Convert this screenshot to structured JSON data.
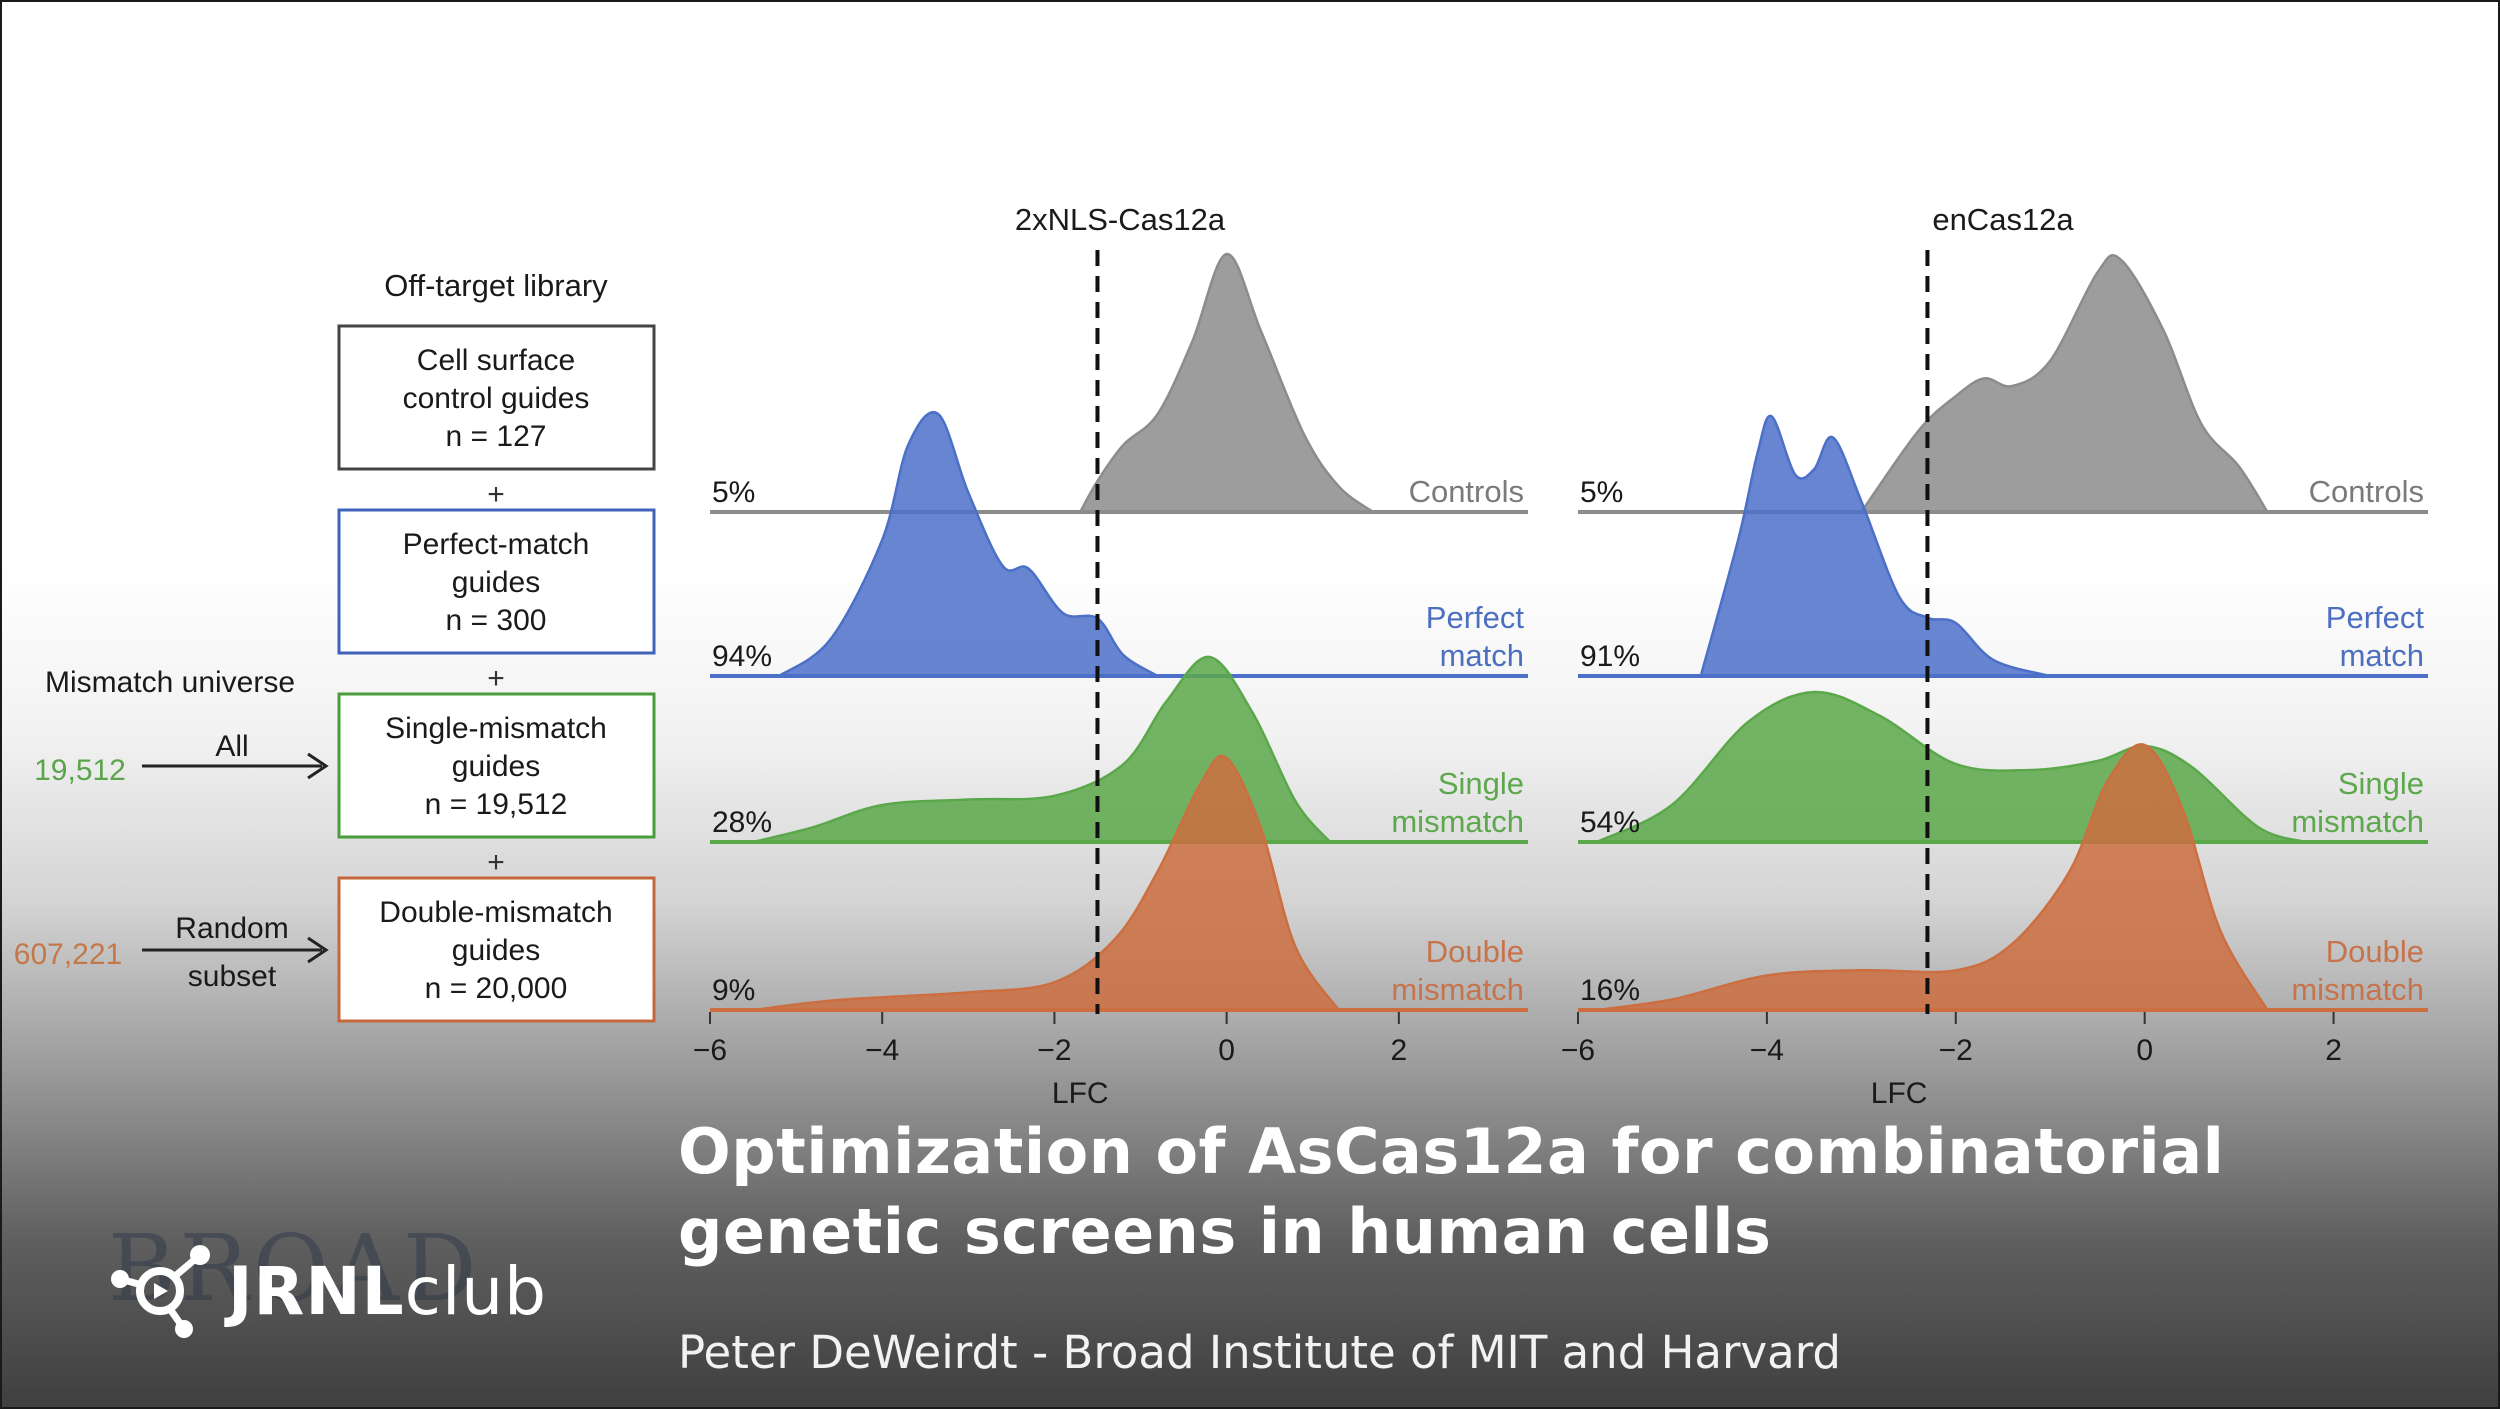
{
  "slide": {
    "title": "Optimization of AsCas12a for combinatorial genetic screens in human cells",
    "subtitle": "Peter DeWeirdt - Broad Institute of MIT and Harvard",
    "logo": {
      "brand_bold": "JRNL",
      "brand_light": "club",
      "watermark": "BROAD"
    }
  },
  "library": {
    "header": "Off-target library",
    "plus": "+",
    "boxes": [
      {
        "line1": "Cell surface",
        "line2": "control guides",
        "n": "n = 127",
        "color": "#333333"
      },
      {
        "line1": "Perfect-match",
        "line2": "guides",
        "n": "n = 300",
        "color": "#3f63b8"
      },
      {
        "line1": "Single-mismatch",
        "line2": "guides",
        "n": "n = 19,512",
        "color": "#4a9b3c"
      },
      {
        "line1": "Double-mismatch",
        "line2": "guides",
        "n": "n = 20,000",
        "color": "#c4673a"
      }
    ],
    "mismatch_universe": {
      "label": "Mismatch universe",
      "single": {
        "count": "19,512",
        "arrow_label": "All",
        "color": "#5aa44a"
      },
      "double": {
        "count": "607,221",
        "arrow_label_1": "Random",
        "arrow_label_2": "subset",
        "color": "#c4784a"
      }
    }
  },
  "chart_data": [
    {
      "type": "area",
      "title": "2xNLS-Cas12a",
      "xlabel": "LFC",
      "xlim": [
        -6,
        3.5
      ],
      "xticks": [
        -6,
        -4,
        -2,
        0,
        2
      ],
      "xtick_labels": [
        "−6",
        "−4",
        "−2",
        "0",
        "2"
      ],
      "threshold": -1.5,
      "series": [
        {
          "name": "Controls",
          "label_lines": [
            "Controls"
          ],
          "percent": "5%",
          "color": "#8c8c8c",
          "label_color": "#7a7a7a",
          "x": [
            -1.7,
            -1.5,
            -1.2,
            -0.8,
            -0.4,
            0,
            0.4,
            0.9,
            1.3,
            1.7
          ],
          "y": [
            0,
            0.12,
            0.26,
            0.38,
            0.66,
            1.0,
            0.7,
            0.3,
            0.1,
            0
          ]
        },
        {
          "name": "Perfect match",
          "label_lines": [
            "Perfect",
            "match"
          ],
          "percent": "94%",
          "color": "#4c70c8",
          "label_color": "#4c6fc0",
          "x": [
            -5.2,
            -4.6,
            -4.0,
            -3.7,
            -3.35,
            -3.0,
            -2.6,
            -2.3,
            -1.9,
            -1.5,
            -1.2,
            -0.8
          ],
          "y": [
            0,
            0.14,
            0.52,
            0.88,
            1.0,
            0.7,
            0.42,
            0.41,
            0.24,
            0.22,
            0.08,
            0
          ]
        },
        {
          "name": "Single mismatch",
          "label_lines": [
            "Single",
            "mismatch"
          ],
          "percent": "28%",
          "color": "#5aa84a",
          "label_color": "#5da84c",
          "x": [
            -5.5,
            -4.8,
            -4.0,
            -3.0,
            -2.0,
            -1.2,
            -0.7,
            -0.2,
            0.3,
            0.8,
            1.2
          ],
          "y": [
            0,
            0.08,
            0.2,
            0.23,
            0.25,
            0.42,
            0.76,
            1.0,
            0.7,
            0.22,
            0
          ]
        },
        {
          "name": "Double mismatch",
          "label_lines": [
            "Double",
            "mismatch"
          ],
          "percent": "9%",
          "color": "#cc6e40",
          "label_color": "#c7734c",
          "x": [
            -5.5,
            -4.5,
            -3.0,
            -2.0,
            -1.3,
            -0.8,
            -0.3,
            0,
            0.4,
            0.8,
            1.3
          ],
          "y": [
            0,
            0.04,
            0.07,
            0.11,
            0.28,
            0.55,
            0.9,
            1.0,
            0.72,
            0.25,
            0
          ]
        }
      ]
    },
    {
      "type": "area",
      "title": "enCas12a",
      "xlabel": "LFC",
      "xlim": [
        -6,
        3.0
      ],
      "xticks": [
        -6,
        -4,
        -2,
        0,
        2
      ],
      "xtick_labels": [
        "−6",
        "−4",
        "−2",
        "0",
        "2"
      ],
      "threshold": -2.3,
      "series": [
        {
          "name": "Controls",
          "label_lines": [
            "Controls"
          ],
          "percent": "5%",
          "color": "#8c8c8c",
          "label_color": "#7a7a7a",
          "x": [
            -3.0,
            -2.4,
            -2.0,
            -1.7,
            -1.4,
            -1.0,
            -0.5,
            -0.25,
            0.2,
            0.6,
            1.0,
            1.3
          ],
          "y": [
            0,
            0.32,
            0.46,
            0.53,
            0.5,
            0.6,
            0.95,
            1.0,
            0.72,
            0.35,
            0.18,
            0
          ]
        },
        {
          "name": "Perfect match",
          "label_lines": [
            "Perfect",
            "match"
          ],
          "percent": "91%",
          "color": "#4c70c8",
          "label_color": "#4c6fc0",
          "x": [
            -4.7,
            -4.3,
            -4.1,
            -3.95,
            -3.7,
            -3.5,
            -3.3,
            -3.0,
            -2.6,
            -2.3,
            -2.0,
            -1.6,
            -1.0
          ],
          "y": [
            0,
            0.52,
            0.84,
            0.98,
            0.76,
            0.78,
            0.9,
            0.66,
            0.3,
            0.22,
            0.2,
            0.06,
            0
          ]
        },
        {
          "name": "Single mismatch",
          "label_lines": [
            "Single",
            "mismatch"
          ],
          "percent": "54%",
          "color": "#5aa84a",
          "label_color": "#5da84c",
          "x": [
            -5.8,
            -5.0,
            -4.2,
            -3.5,
            -2.8,
            -2.0,
            -1.2,
            -0.5,
            0,
            0.5,
            1.2,
            1.7
          ],
          "y": [
            0,
            0.25,
            0.8,
            1.0,
            0.84,
            0.52,
            0.48,
            0.54,
            0.64,
            0.5,
            0.1,
            0
          ]
        },
        {
          "name": "Double mismatch",
          "label_lines": [
            "Double",
            "mismatch"
          ],
          "percent": "16%",
          "color": "#cc6e40",
          "label_color": "#c7734c",
          "x": [
            -5.8,
            -5.0,
            -4.0,
            -3.0,
            -2.0,
            -1.4,
            -0.8,
            -0.4,
            0.0,
            0.4,
            0.8,
            1.3
          ],
          "y": [
            0,
            0.04,
            0.13,
            0.15,
            0.15,
            0.25,
            0.52,
            0.86,
            1.0,
            0.76,
            0.3,
            0
          ]
        }
      ]
    }
  ]
}
